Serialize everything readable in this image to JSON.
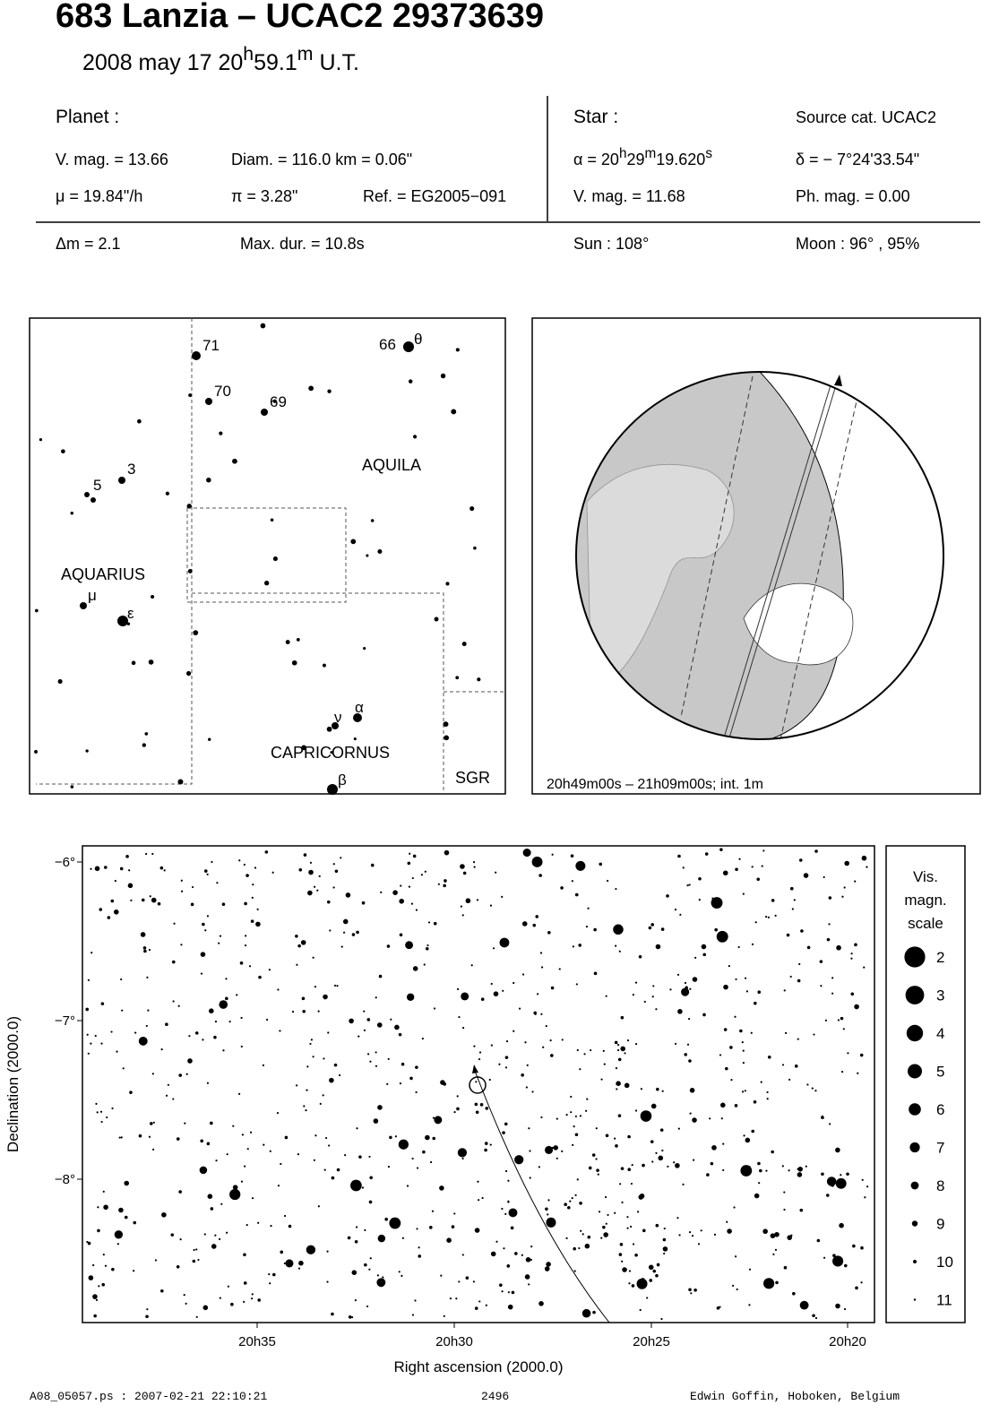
{
  "header": {
    "title": "683 Lanzia  –  UCAC2 29373639",
    "date": [
      "2008 may 17  20",
      "h",
      "59.1",
      "m",
      " U.T."
    ]
  },
  "planet": {
    "heading": "Planet :",
    "vmag": "V. mag. = 13.66",
    "diam": "Diam. = 116.0 km = 0.06\"",
    "mu": "μ =  19.84\"/h",
    "pi": "π =  3.28\"",
    "ref": "Ref. = EG2005−091"
  },
  "star": {
    "heading": "Star :",
    "source": "Source cat.  UCAC2",
    "alpha": [
      "α = 20",
      "h",
      "29",
      "m",
      "19.620",
      "s"
    ],
    "delta": "δ = − 7°24'33.54\"",
    "vmag": "V. mag. = 11.68",
    "phmag": "Ph. mag. =  0.00"
  },
  "summary": {
    "dm": "Δm = 2.1",
    "maxdur": "Max. dur. = 10.8s",
    "sun": "Sun : 108°",
    "moon": "Moon :  96° , 95%"
  },
  "finder": {
    "labels": [
      "71",
      "70",
      "69",
      "66",
      "θ",
      "3",
      "5",
      "AQUILA",
      "AQUARIUS",
      "μ",
      "ε",
      "ν",
      "α",
      "CAPRICORNUS",
      "β",
      "SGR"
    ]
  },
  "globe": {
    "caption": "20h49m00s – 21h09m00s; int.  1m"
  },
  "starchart": {
    "yticks": [
      "−6°",
      "−7°",
      "−8°"
    ],
    "xticks": [
      "20h35",
      "20h30",
      "20h25",
      "20h20"
    ],
    "xlabel": "Right ascension (2000.0)",
    "ylabel": "Declination (2000.0)"
  },
  "scale": {
    "title": [
      "Vis.",
      "magn.",
      "scale"
    ],
    "mags": [
      2,
      3,
      4,
      5,
      6,
      7,
      8,
      9,
      10,
      11
    ]
  },
  "footer": {
    "file": "A08_05057.ps : 2007-02-21 22:10:21",
    "number": "2496",
    "author": "Edwin Goffin, Hoboken, Belgium"
  }
}
